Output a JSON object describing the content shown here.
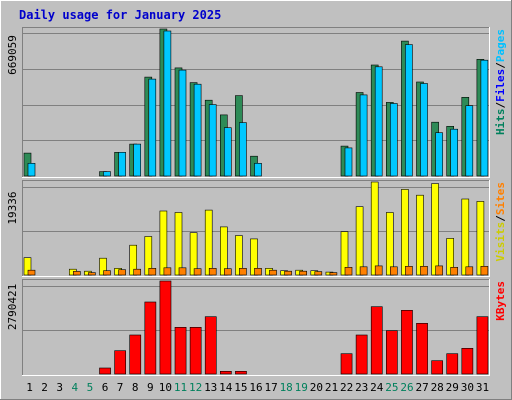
{
  "chart_data": {
    "type": "bar",
    "title": "Daily usage for January 2025",
    "categories": [
      "1",
      "2",
      "3",
      "4",
      "5",
      "6",
      "7",
      "8",
      "9",
      "10",
      "11",
      "12",
      "13",
      "14",
      "15",
      "16",
      "17",
      "18",
      "19",
      "20",
      "21",
      "22",
      "23",
      "24",
      "25",
      "26",
      "27",
      "28",
      "29",
      "30",
      "31"
    ],
    "weekend_days": [
      "4",
      "5",
      "11",
      "12",
      "18",
      "19",
      "25",
      "26"
    ],
    "panels": [
      {
        "axis_max_label": "669059",
        "ylim": [
          0,
          669059
        ],
        "legend": [
          {
            "text": "Hits",
            "color": "#00805c"
          },
          {
            "text": "/",
            "color": "#000000"
          },
          {
            "text": "Files",
            "color": "#0000ff"
          },
          {
            "text": "/",
            "color": "#000000"
          },
          {
            "text": "Pages",
            "color": "#00c0ff"
          }
        ],
        "series": [
          {
            "name": "Hits",
            "color": "#2e8b57",
            "values": [
              104000,
              0,
              0,
              0,
              0,
              20000,
              108000,
              145000,
              450000,
              669059,
              492000,
              425000,
              345000,
              278000,
              366000,
              90000,
              0,
              0,
              0,
              0,
              0,
              136000,
              380000,
              505000,
              335000,
              614000,
              428000,
              245000,
              226000,
              358000,
              531000
            ]
          },
          {
            "name": "Files",
            "color": "#00c8ff",
            "values": [
              58000,
              0,
              0,
              0,
              0,
              20000,
              108000,
              145000,
              441000,
              660000,
              482000,
              418000,
              325000,
              220000,
              243000,
              58000,
              0,
              0,
              0,
              0,
              0,
              128000,
              369000,
              497000,
              330000,
              598000,
              421000,
              197000,
              213000,
              320000,
              527000
            ]
          },
          {
            "name": "Pages",
            "color": "#00c8ff",
            "values": [
              0,
              0,
              0,
              0,
              0,
              0,
              0,
              0,
              0,
              0,
              0,
              0,
              0,
              0,
              0,
              0,
              0,
              0,
              0,
              0,
              0,
              0,
              0,
              0,
              0,
              0,
              0,
              0,
              0,
              0,
              0
            ]
          }
        ]
      },
      {
        "axis_max_label": "19336",
        "ylim": [
          0,
          19336
        ],
        "legend": [
          {
            "text": "Visits",
            "color": "#cccc00"
          },
          {
            "text": "/",
            "color": "#000000"
          },
          {
            "text": "Sites",
            "color": "#ff8000"
          }
        ],
        "series": [
          {
            "name": "Visits",
            "color": "#ffff00",
            "values": [
              3600,
              0,
              0,
              1200,
              800,
              3500,
              1400,
              6200,
              8000,
              13300,
              13000,
              8800,
              13500,
              10000,
              8200,
              7500,
              1400,
              900,
              1000,
              900,
              600,
              9000,
              14200,
              19336,
              13000,
              17800,
              16600,
              19000,
              7600,
              15800,
              15300
            ]
          },
          {
            "name": "Sites",
            "color": "#ff8000",
            "values": [
              1000,
              0,
              0,
              750,
              500,
              900,
              1100,
              1200,
              1400,
              1500,
              1500,
              1300,
              1400,
              1300,
              1400,
              1400,
              1000,
              800,
              800,
              700,
              500,
              1600,
              1700,
              1900,
              1700,
              1800,
              1800,
              1900,
              1600,
              1700,
              1800
            ]
          }
        ]
      },
      {
        "axis_max_label": "2790421",
        "ylim": [
          0,
          2790421
        ],
        "legend": [
          {
            "text": "KBytes",
            "color": "#ff0000"
          }
        ],
        "series": [
          {
            "name": "KBytes",
            "color": "#ff0000",
            "values": [
              0,
              0,
              0,
              0,
              0,
              180000,
              700000,
              1170000,
              2160000,
              2790421,
              1400000,
              1400000,
              1720000,
              80000,
              80000,
              0,
              0,
              0,
              0,
              0,
              0,
              610000,
              1170000,
              2020000,
              1300000,
              1910000,
              1520000,
              400000,
              610000,
              770000,
              1720000
            ]
          }
        ]
      }
    ],
    "colors": {
      "plot_background": "#c0c0c0",
      "gridline": "#808080",
      "title": "#0000cc",
      "weekday_label": "#000000",
      "weekend_label": "#00805c"
    }
  }
}
